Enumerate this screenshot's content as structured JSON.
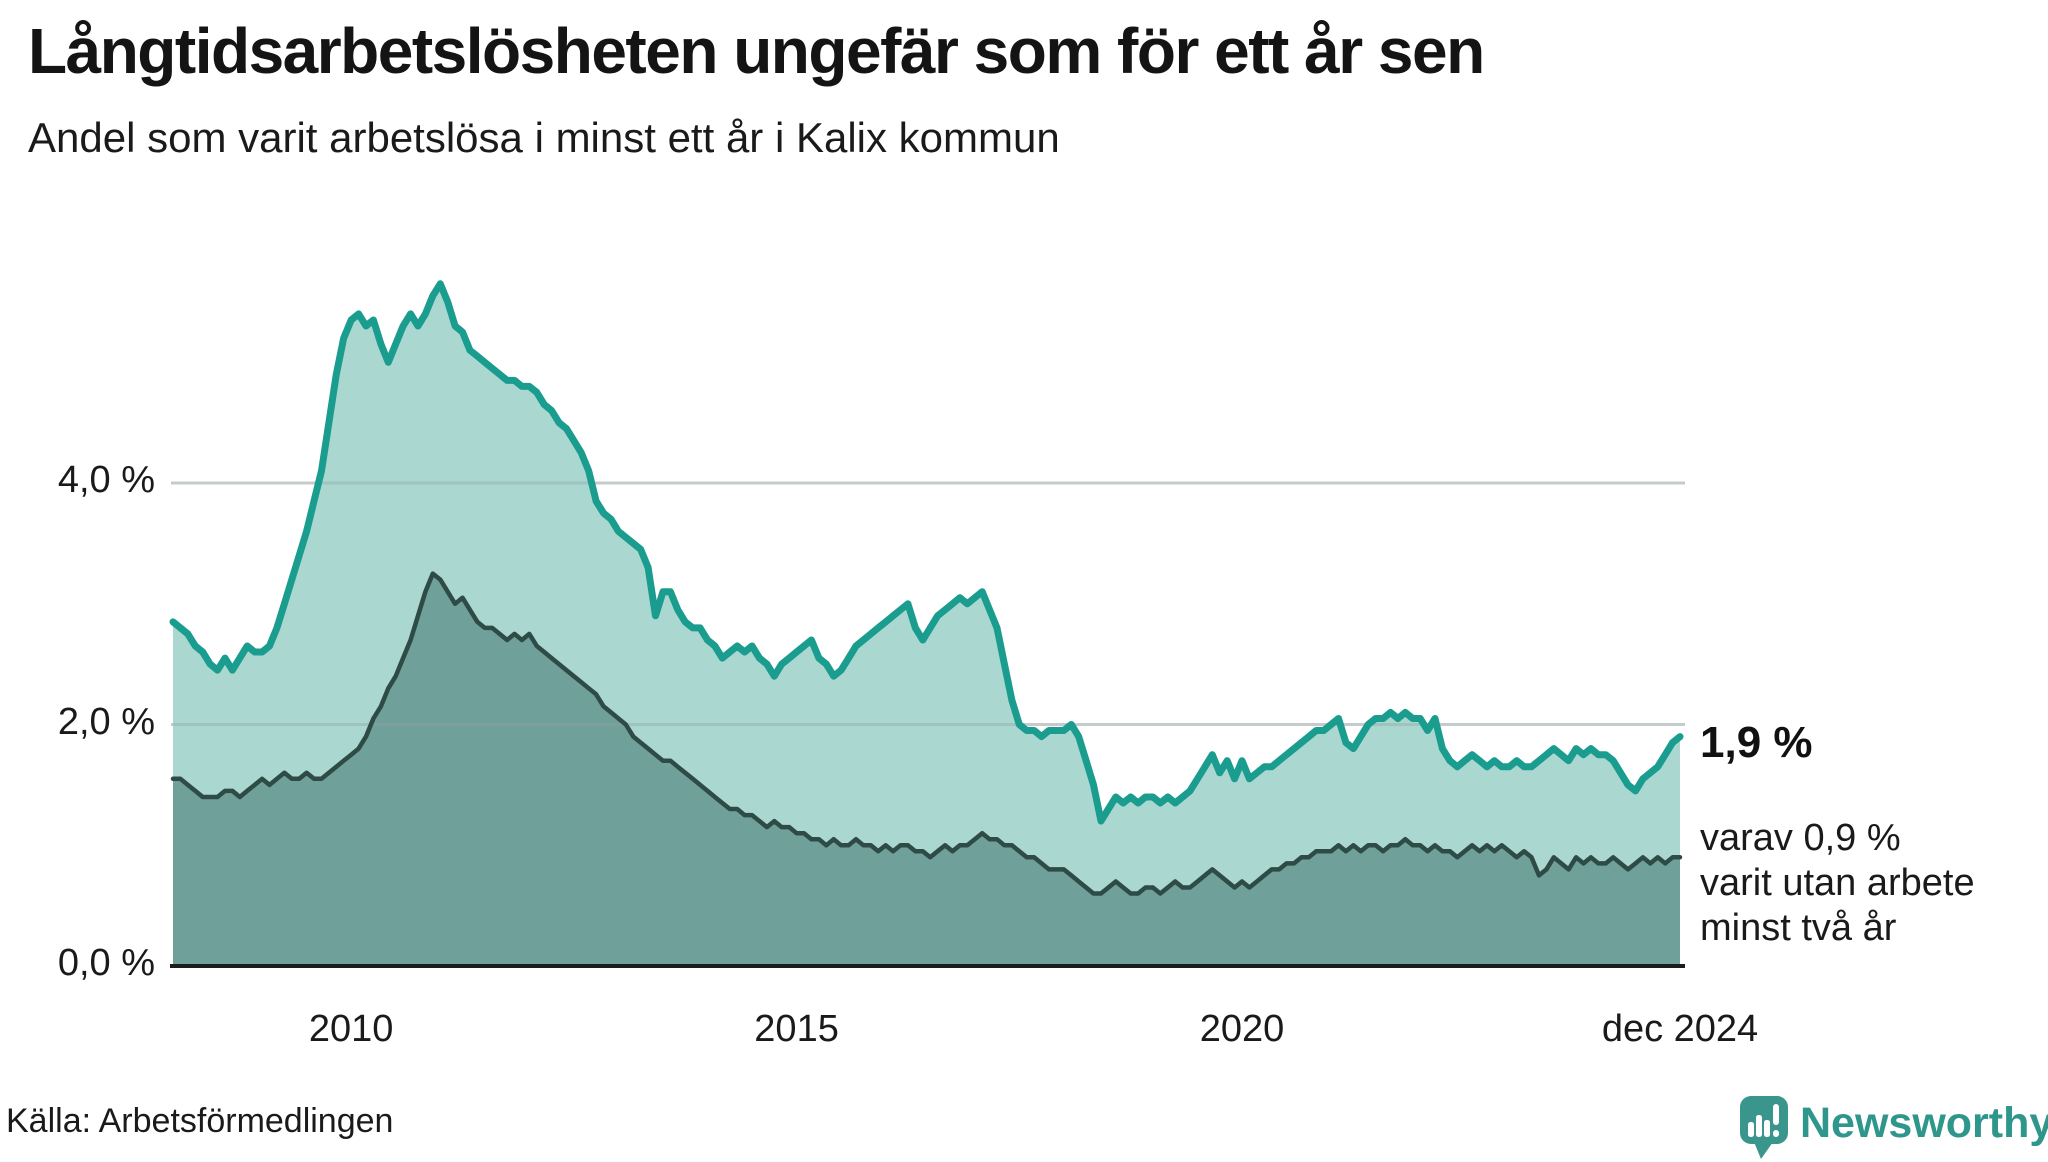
{
  "header": {
    "title": "Långtidsarbetslösheten ungefär som för ett år sen",
    "subtitle": "Andel som varit arbetslösa i minst ett år i Kalix kommun"
  },
  "annotation": {
    "value_label": "1,9 %",
    "detail_lines": [
      "varav 0,9 %",
      "varit utan arbete",
      "minst två år"
    ]
  },
  "footer": {
    "source": "Källa: Arbetsförmedlingen",
    "brand_name": "Newsworthy",
    "brand_color": "#2f968c",
    "brand_icon": "bar-chart-speech-bubble-icon"
  },
  "chart_data": {
    "type": "area",
    "unit": "%",
    "frequency": "monthly",
    "x_start": "2008-01",
    "x_end": "2024-12",
    "grid": "horizontal",
    "ylim": [
      0,
      5.9
    ],
    "y_gridlines": [
      2,
      4
    ],
    "y_ticks": [
      {
        "value": 0,
        "label": "0,0 %"
      },
      {
        "value": 2,
        "label": "2,0 %"
      },
      {
        "value": 4,
        "label": "4,0 %"
      }
    ],
    "x_ticks": [
      {
        "label": "2010",
        "month_index": 24
      },
      {
        "label": "2015",
        "month_index": 84
      },
      {
        "label": "2020",
        "month_index": 144
      },
      {
        "label": "dec 2024",
        "month_index": 203
      }
    ],
    "series": [
      {
        "name": "Arbetslösa minst ett år",
        "latest_value": 1.9,
        "line_color": "#1a9c8e",
        "fill_color": "#aad8d1",
        "line_width": 7,
        "values": [
          2.85,
          2.8,
          2.75,
          2.65,
          2.6,
          2.5,
          2.45,
          2.55,
          2.45,
          2.55,
          2.65,
          2.6,
          2.6,
          2.65,
          2.8,
          3.0,
          3.2,
          3.4,
          3.6,
          3.85,
          4.1,
          4.5,
          4.9,
          5.2,
          5.35,
          5.4,
          5.3,
          5.35,
          5.15,
          5.0,
          5.15,
          5.3,
          5.4,
          5.3,
          5.4,
          5.55,
          5.65,
          5.5,
          5.3,
          5.25,
          5.1,
          5.05,
          5.0,
          4.95,
          4.9,
          4.85,
          4.85,
          4.8,
          4.8,
          4.75,
          4.65,
          4.6,
          4.5,
          4.45,
          4.35,
          4.25,
          4.1,
          3.85,
          3.75,
          3.7,
          3.6,
          3.55,
          3.5,
          3.45,
          3.3,
          2.9,
          3.1,
          3.1,
          2.95,
          2.85,
          2.8,
          2.8,
          2.7,
          2.65,
          2.55,
          2.6,
          2.65,
          2.6,
          2.65,
          2.55,
          2.5,
          2.4,
          2.5,
          2.55,
          2.6,
          2.65,
          2.7,
          2.55,
          2.5,
          2.4,
          2.45,
          2.55,
          2.65,
          2.7,
          2.75,
          2.8,
          2.85,
          2.9,
          2.95,
          3.0,
          2.8,
          2.7,
          2.8,
          2.9,
          2.95,
          3.0,
          3.05,
          3.0,
          3.05,
          3.1,
          2.95,
          2.8,
          2.5,
          2.2,
          2.0,
          1.95,
          1.95,
          1.9,
          1.95,
          1.95,
          1.95,
          2.0,
          1.9,
          1.7,
          1.5,
          1.2,
          1.3,
          1.4,
          1.35,
          1.4,
          1.35,
          1.4,
          1.4,
          1.35,
          1.4,
          1.35,
          1.4,
          1.45,
          1.55,
          1.65,
          1.75,
          1.6,
          1.7,
          1.55,
          1.7,
          1.55,
          1.6,
          1.65,
          1.65,
          1.7,
          1.75,
          1.8,
          1.85,
          1.9,
          1.95,
          1.95,
          2.0,
          2.05,
          1.85,
          1.8,
          1.9,
          2.0,
          2.05,
          2.05,
          2.1,
          2.05,
          2.1,
          2.05,
          2.05,
          1.95,
          2.05,
          1.8,
          1.7,
          1.65,
          1.7,
          1.75,
          1.7,
          1.65,
          1.7,
          1.65,
          1.65,
          1.7,
          1.65,
          1.65,
          1.7,
          1.75,
          1.8,
          1.75,
          1.7,
          1.8,
          1.75,
          1.8,
          1.75,
          1.75,
          1.7,
          1.6,
          1.5,
          1.45,
          1.55,
          1.6,
          1.65,
          1.75,
          1.85,
          1.9
        ]
      },
      {
        "name": "Arbetslösa minst två år",
        "latest_value": 0.9,
        "line_color": "#2e4b46",
        "fill_color": "#70a09a",
        "line_width": 4.5,
        "values": [
          1.55,
          1.55,
          1.5,
          1.45,
          1.4,
          1.4,
          1.4,
          1.45,
          1.45,
          1.4,
          1.45,
          1.5,
          1.55,
          1.5,
          1.55,
          1.6,
          1.55,
          1.55,
          1.6,
          1.55,
          1.55,
          1.6,
          1.65,
          1.7,
          1.75,
          1.8,
          1.9,
          2.05,
          2.15,
          2.3,
          2.4,
          2.55,
          2.7,
          2.9,
          3.1,
          3.25,
          3.2,
          3.1,
          3.0,
          3.05,
          2.95,
          2.85,
          2.8,
          2.8,
          2.75,
          2.7,
          2.75,
          2.7,
          2.75,
          2.65,
          2.6,
          2.55,
          2.5,
          2.45,
          2.4,
          2.35,
          2.3,
          2.25,
          2.15,
          2.1,
          2.05,
          2.0,
          1.9,
          1.85,
          1.8,
          1.75,
          1.7,
          1.7,
          1.65,
          1.6,
          1.55,
          1.5,
          1.45,
          1.4,
          1.35,
          1.3,
          1.3,
          1.25,
          1.25,
          1.2,
          1.15,
          1.2,
          1.15,
          1.15,
          1.1,
          1.1,
          1.05,
          1.05,
          1.0,
          1.05,
          1.0,
          1.0,
          1.05,
          1.0,
          1.0,
          0.95,
          1.0,
          0.95,
          1.0,
          1.0,
          0.95,
          0.95,
          0.9,
          0.95,
          1.0,
          0.95,
          1.0,
          1.0,
          1.05,
          1.1,
          1.05,
          1.05,
          1.0,
          1.0,
          0.95,
          0.9,
          0.9,
          0.85,
          0.8,
          0.8,
          0.8,
          0.75,
          0.7,
          0.65,
          0.6,
          0.6,
          0.65,
          0.7,
          0.65,
          0.6,
          0.6,
          0.65,
          0.65,
          0.6,
          0.65,
          0.7,
          0.65,
          0.65,
          0.7,
          0.75,
          0.8,
          0.75,
          0.7,
          0.65,
          0.7,
          0.65,
          0.7,
          0.75,
          0.8,
          0.8,
          0.85,
          0.85,
          0.9,
          0.9,
          0.95,
          0.95,
          0.95,
          1.0,
          0.95,
          1.0,
          0.95,
          1.0,
          1.0,
          0.95,
          1.0,
          1.0,
          1.05,
          1.0,
          1.0,
          0.95,
          1.0,
          0.95,
          0.95,
          0.9,
          0.95,
          1.0,
          0.95,
          1.0,
          0.95,
          1.0,
          0.95,
          0.9,
          0.95,
          0.9,
          0.75,
          0.8,
          0.9,
          0.85,
          0.8,
          0.9,
          0.85,
          0.9,
          0.85,
          0.85,
          0.9,
          0.85,
          0.8,
          0.85,
          0.9,
          0.85,
          0.9,
          0.85,
          0.9,
          0.9
        ]
      }
    ],
    "colors": {
      "grid": "#e4e4e7",
      "axis": "#1c1c1c",
      "text": "#1a1a1a"
    }
  }
}
